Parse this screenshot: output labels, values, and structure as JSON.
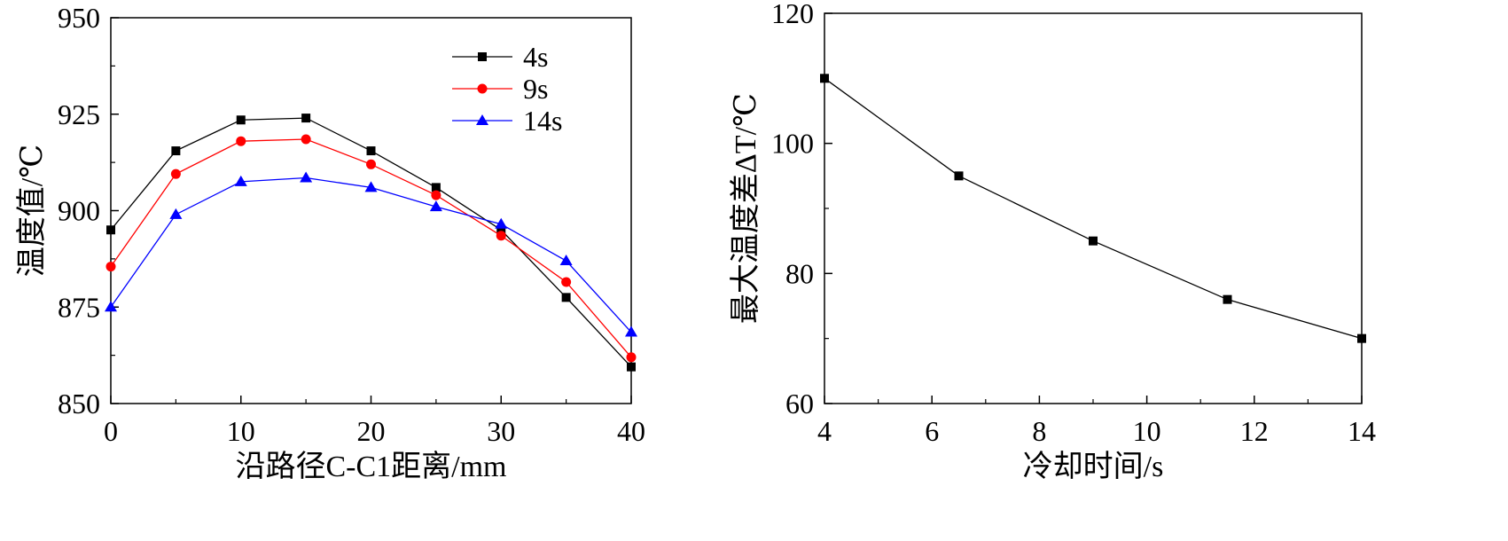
{
  "chart_data": [
    {
      "type": "line",
      "title": "",
      "xlabel": "沿路径C-C1距离/mm",
      "ylabel": "温度值/℃",
      "xlim": [
        0,
        40
      ],
      "ylim": [
        850,
        950
      ],
      "xticks": [
        0,
        10,
        20,
        30,
        40
      ],
      "yticks": [
        850,
        875,
        900,
        925,
        950
      ],
      "legend": "top-right",
      "x": [
        0,
        5,
        10,
        15,
        20,
        25,
        30,
        35,
        40
      ],
      "series": [
        {
          "name": "4s",
          "color": "#000000",
          "marker": "square",
          "values": [
            895,
            915.5,
            923.5,
            924,
            915.5,
            906,
            895,
            877.5,
            859.5
          ]
        },
        {
          "name": "9s",
          "color": "#ff0000",
          "marker": "circle",
          "values": [
            885.5,
            909.5,
            918,
            918.5,
            912,
            904,
            893.5,
            881.5,
            862
          ]
        },
        {
          "name": "14s",
          "color": "#0000ff",
          "marker": "triangle",
          "values": [
            875,
            899,
            907.5,
            908.5,
            906,
            901,
            896.5,
            887,
            868.5
          ]
        }
      ]
    },
    {
      "type": "line",
      "title": "",
      "xlabel": "冷却时间/s",
      "ylabel": "最大温度差ΔT/℃",
      "xlim": [
        4,
        14
      ],
      "ylim": [
        60,
        120
      ],
      "xticks": [
        4,
        6,
        8,
        10,
        12,
        14
      ],
      "yticks": [
        60,
        80,
        100,
        120
      ],
      "x": [
        4,
        6.5,
        9,
        11.5,
        14
      ],
      "series": [
        {
          "name": "",
          "color": "#000000",
          "marker": "square",
          "values": [
            110,
            95,
            85,
            76,
            70
          ]
        }
      ]
    }
  ]
}
